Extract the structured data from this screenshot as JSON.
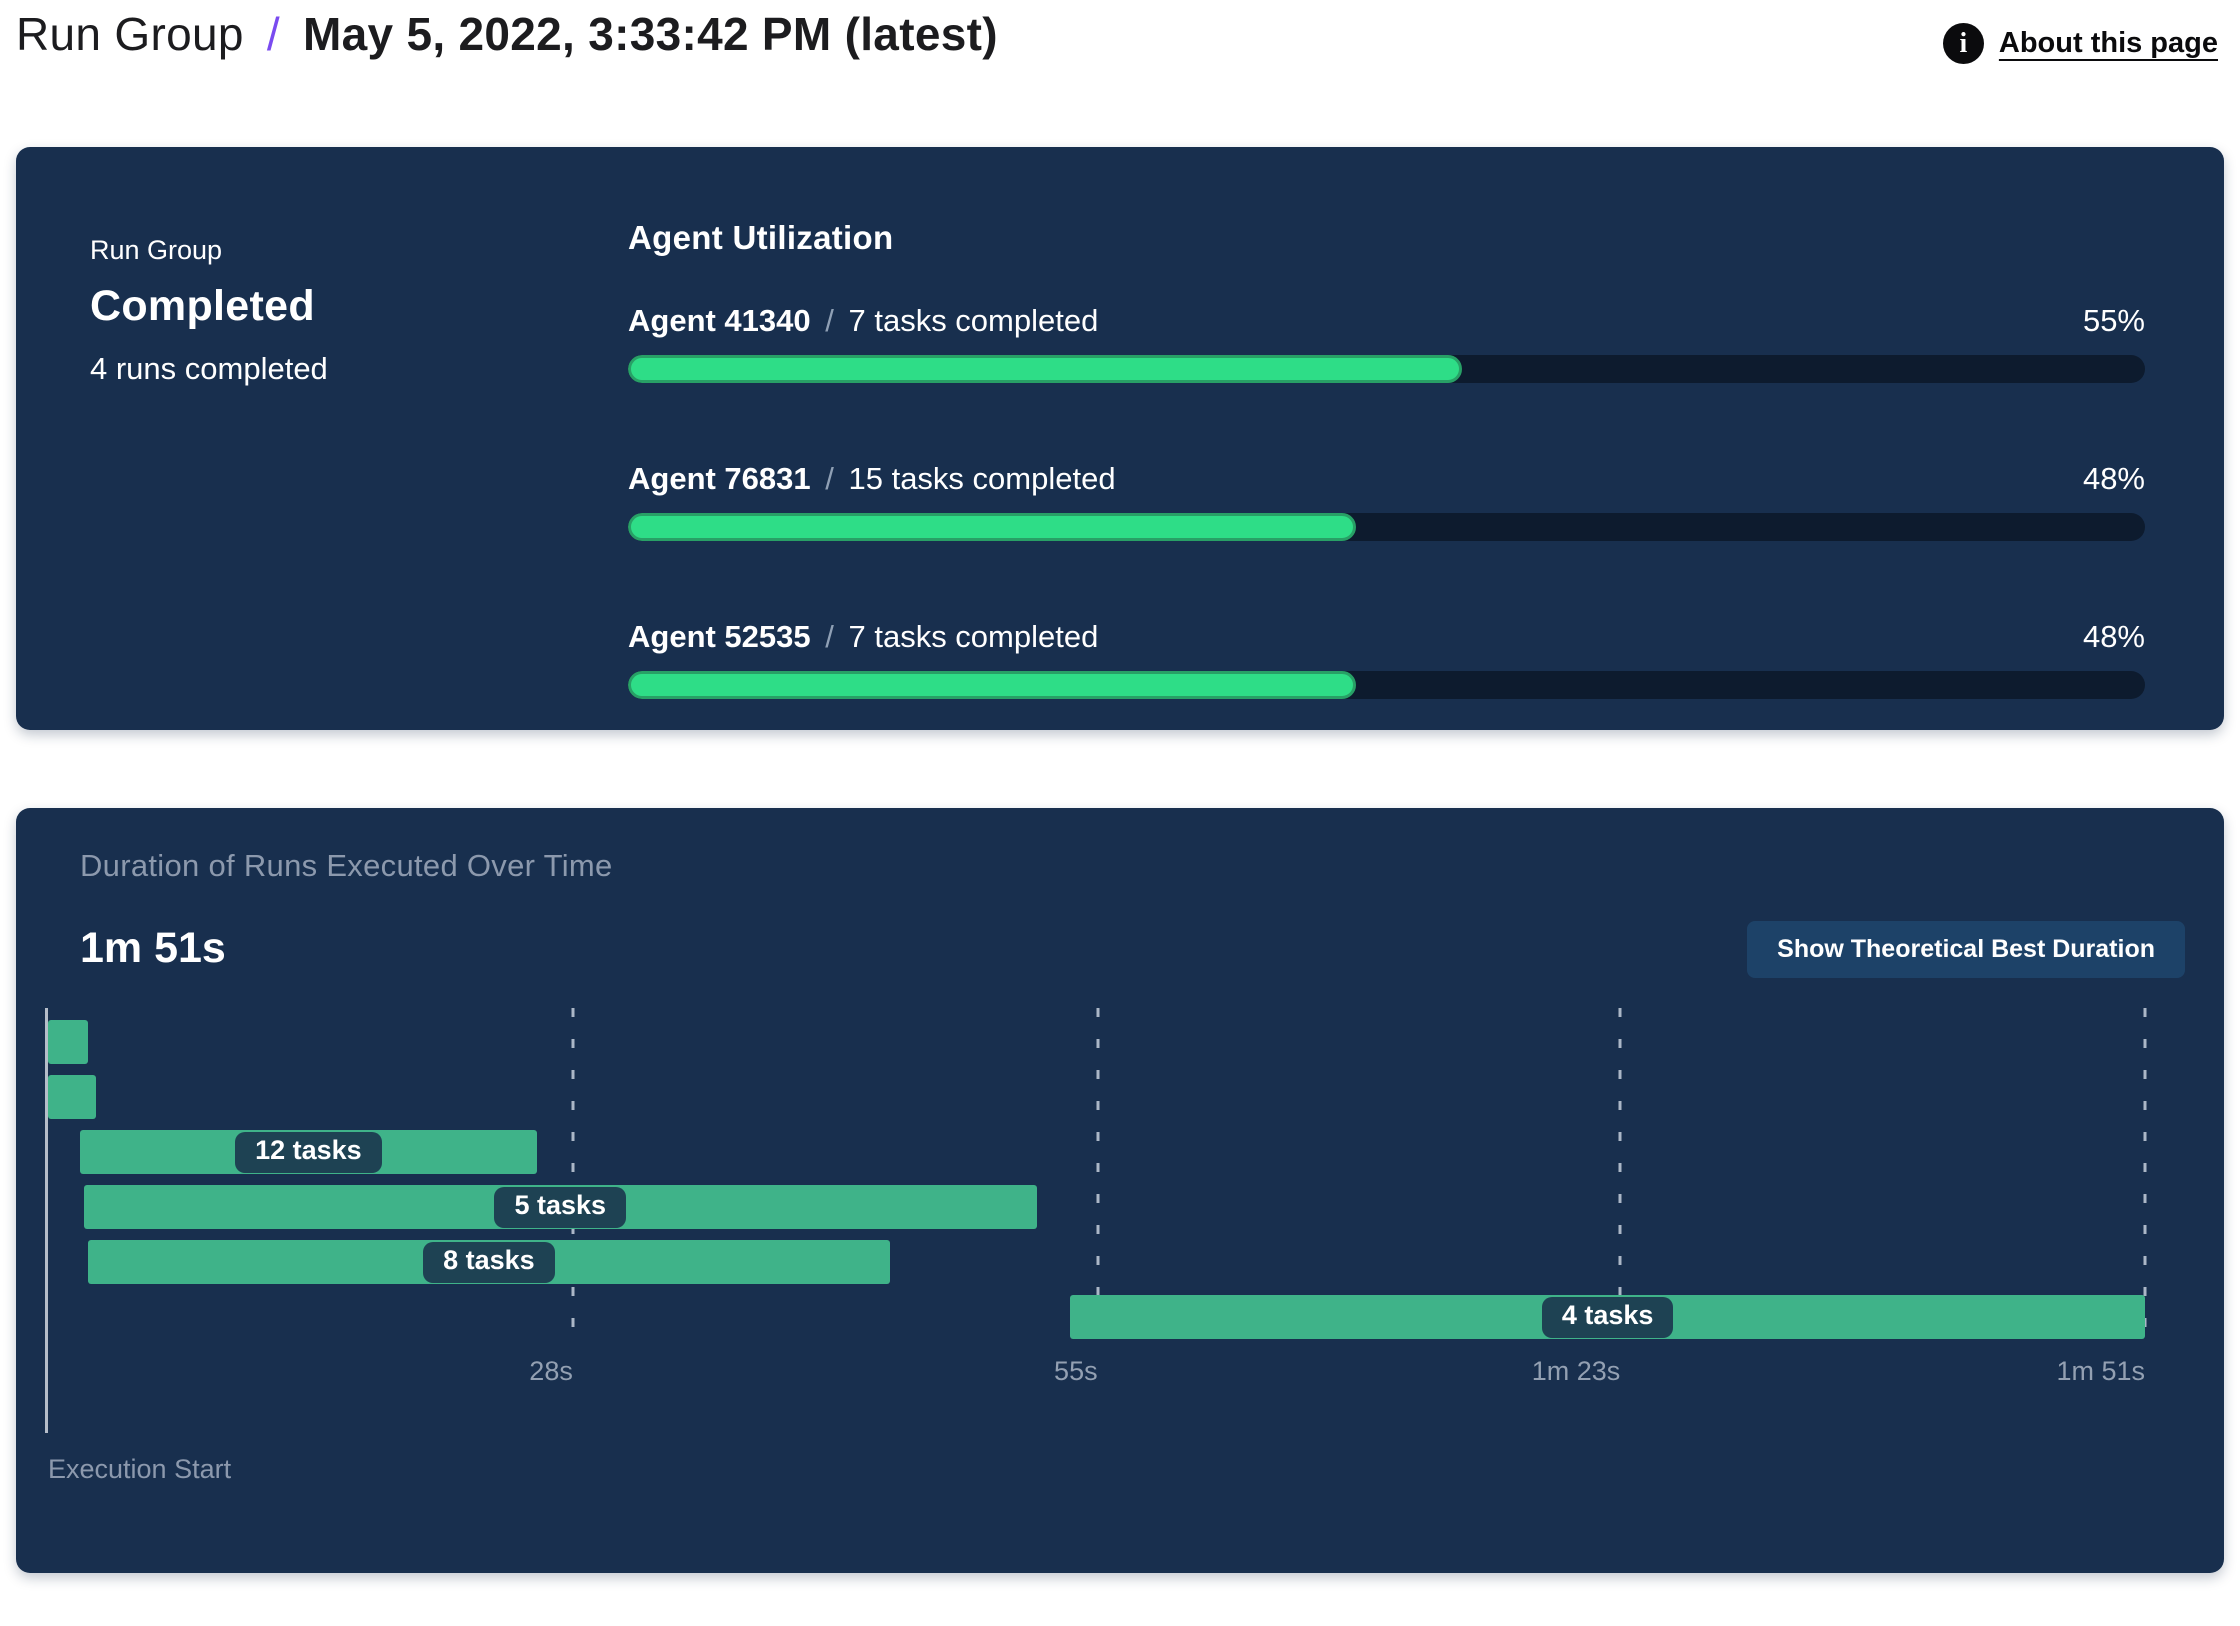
{
  "page": {
    "title_crumb": "Run Group",
    "title_separator": "/",
    "title_date": "May 5, 2022, 3:33:42 PM (latest)",
    "about_label": "About this page",
    "info_glyph": "i"
  },
  "colors": {
    "accent_purple": "#7a4bf0",
    "panel_navy": "#182f4e",
    "progress_track": "#0d1b2e",
    "progress_fill": "#2edd87",
    "progress_fill_rim": "#28a066",
    "gantt_green": "#3fb389",
    "pill_badge": "#1e4253",
    "muted_text": "#8c99ad",
    "button_blue": "#1d4268"
  },
  "summary": {
    "group_label": "Run Group",
    "status": "Completed",
    "runs_completed": "4 runs completed"
  },
  "agent_utilization": {
    "heading": "Agent Utilization",
    "separator": "/",
    "agents": [
      {
        "name": "Agent 41340",
        "tasks": "7 tasks completed",
        "percent": 55,
        "percent_label": "55%"
      },
      {
        "name": "Agent 76831",
        "tasks": "15 tasks completed",
        "percent": 48,
        "percent_label": "48%"
      },
      {
        "name": "Agent 52535",
        "tasks": "7 tasks completed",
        "percent": 48,
        "percent_label": "48%"
      }
    ]
  },
  "duration_panel": {
    "button_label": "Show Theoretical Best Duration"
  },
  "chart_data": {
    "type": "bar",
    "subtype": "gantt-run-durations",
    "title": "Duration of Runs Executed Over Time",
    "total_duration_label": "1m 51s",
    "x_axis": {
      "start_label": "Execution Start",
      "range_seconds": [
        0,
        111
      ],
      "ticks": [
        {
          "label": "28s",
          "pct": 25.1
        },
        {
          "label": "55s",
          "pct": 50.1
        },
        {
          "label": "1m 23s",
          "pct": 75.0
        },
        {
          "label": "1m 51s",
          "pct": 100
        }
      ]
    },
    "bars": [
      {
        "label": "",
        "start_s": 0.1,
        "end_s": 2.2,
        "left_pct": 0.1,
        "width_pct": 1.9
      },
      {
        "label": "",
        "start_s": 0.1,
        "end_s": 2.7,
        "left_pct": 0.1,
        "width_pct": 2.3
      },
      {
        "label": "12 tasks",
        "start_s": 1.8,
        "end_s": 26.0,
        "left_pct": 1.6,
        "width_pct": 21.8
      },
      {
        "label": "5 tasks",
        "start_s": 2.0,
        "end_s": 52.4,
        "left_pct": 1.8,
        "width_pct": 45.4
      },
      {
        "label": "8 tasks",
        "start_s": 2.2,
        "end_s": 44.6,
        "left_pct": 2.0,
        "width_pct": 38.2
      },
      {
        "label": "4 tasks",
        "start_s": 54.2,
        "end_s": 111.0,
        "left_pct": 48.8,
        "width_pct": 51.2
      }
    ]
  }
}
